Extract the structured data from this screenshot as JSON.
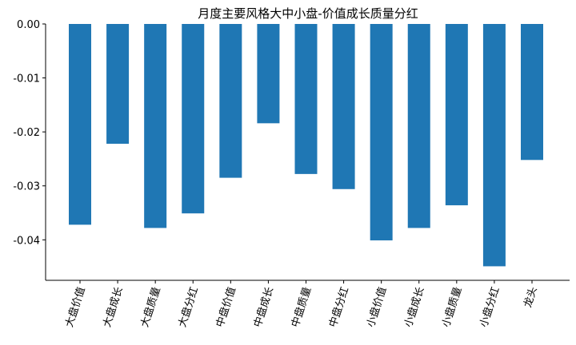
{
  "chart_data": {
    "type": "bar",
    "title": "月度主要风格大中小盘-价值成长质量分红",
    "categories": [
      "大盘价值",
      "大盘成长",
      "大盘质量",
      "大盘分红",
      "中盘价值",
      "中盘成长",
      "中盘质量",
      "中盘分红",
      "小盘价值",
      "小盘成长",
      "小盘质量",
      "小盘分红",
      "龙头"
    ],
    "values": [
      -0.0372,
      -0.0222,
      -0.0378,
      -0.0351,
      -0.0285,
      -0.0184,
      -0.0278,
      -0.0306,
      -0.0401,
      -0.0378,
      -0.0336,
      -0.0449,
      -0.0252
    ],
    "ylim": [
      -0.0475,
      0.0
    ],
    "yticks": [
      0.0,
      -0.01,
      -0.02,
      -0.03,
      -0.04
    ],
    "ytick_labels": [
      "0.00",
      "-0.01",
      "-0.02",
      "-0.03",
      "-0.04"
    ],
    "xlabel": "",
    "ylabel": "",
    "bar_color": "#1f77b4",
    "grid": false
  }
}
